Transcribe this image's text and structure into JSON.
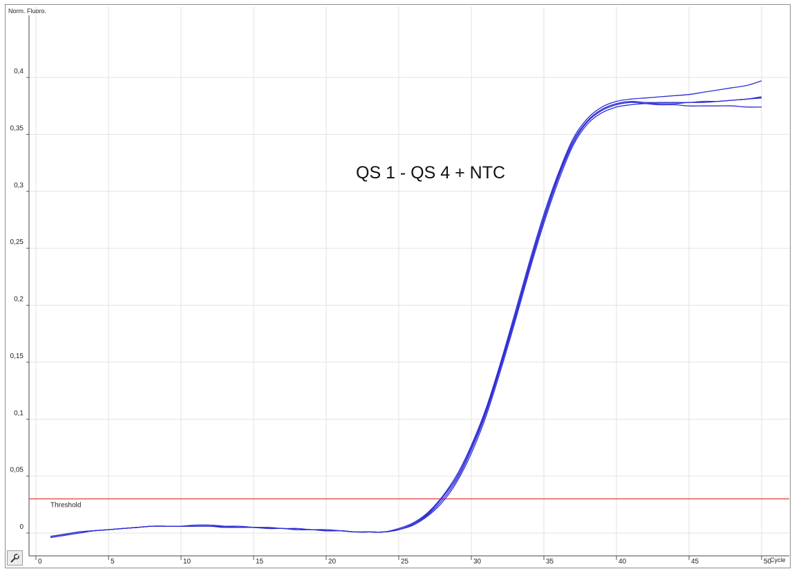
{
  "tool_icon": "wrench-icon",
  "chart_data": {
    "type": "line",
    "title": "",
    "annotation": "QS 1 - QS 4 + NTC",
    "xlabel": "Cycle",
    "ylabel": "Norm. Fluoro.",
    "xlim": [
      0,
      50
    ],
    "ylim": [
      -0.01,
      0.45
    ],
    "grid": true,
    "x_ticks": [
      0,
      5,
      10,
      15,
      20,
      25,
      30,
      35,
      40,
      45,
      50
    ],
    "x_tick_labels": [
      "0",
      "5",
      "10",
      "15",
      "20",
      "25",
      "30",
      "35",
      "40",
      "45",
      "50"
    ],
    "y_ticks": [
      0,
      0.05,
      0.1,
      0.15,
      0.2,
      0.25,
      0.3,
      0.35,
      0.4
    ],
    "y_tick_labels": [
      "0",
      "0,05",
      "0,1",
      "0,15",
      "0,2",
      "0,25",
      "0,3",
      "0,35",
      "0,4"
    ],
    "threshold": {
      "label": "Threshold",
      "value": 0.03,
      "color": "#e8474a"
    },
    "line_color": "#2b2bd6",
    "series_x": [
      1,
      2,
      3,
      4,
      5,
      6,
      7,
      8,
      9,
      10,
      11,
      12,
      13,
      14,
      15,
      16,
      17,
      18,
      19,
      20,
      21,
      22,
      23,
      24,
      25,
      26,
      27,
      28,
      29,
      30,
      31,
      32,
      33,
      34,
      35,
      36,
      37,
      38,
      39,
      40,
      41,
      42,
      43,
      44,
      45,
      46,
      47,
      48,
      49,
      50
    ],
    "series": [
      {
        "values": [
          -0.004,
          -0.002,
          0.0,
          0.002,
          0.003,
          0.004,
          0.005,
          0.006,
          0.006,
          0.006,
          0.006,
          0.006,
          0.005,
          0.005,
          0.005,
          0.004,
          0.004,
          0.003,
          0.003,
          0.002,
          0.002,
          0.001,
          0.001,
          0.001,
          0.003,
          0.008,
          0.016,
          0.029,
          0.047,
          0.073,
          0.105,
          0.145,
          0.188,
          0.233,
          0.275,
          0.312,
          0.342,
          0.361,
          0.371,
          0.376,
          0.378,
          0.377,
          0.376,
          0.376,
          0.375,
          0.375,
          0.375,
          0.375,
          0.374,
          0.374
        ]
      },
      {
        "values": [
          -0.003,
          -0.001,
          0.001,
          0.002,
          0.003,
          0.004,
          0.005,
          0.006,
          0.006,
          0.006,
          0.007,
          0.007,
          0.006,
          0.006,
          0.005,
          0.005,
          0.004,
          0.004,
          0.003,
          0.003,
          0.002,
          0.001,
          0.001,
          0.001,
          0.004,
          0.009,
          0.018,
          0.032,
          0.051,
          0.077,
          0.109,
          0.149,
          0.193,
          0.238,
          0.28,
          0.316,
          0.346,
          0.364,
          0.374,
          0.379,
          0.381,
          0.382,
          0.383,
          0.384,
          0.385,
          0.387,
          0.389,
          0.391,
          0.393,
          0.397
        ]
      },
      {
        "values": [
          -0.003,
          -0.001,
          0.001,
          0.002,
          0.003,
          0.004,
          0.005,
          0.006,
          0.006,
          0.006,
          0.006,
          0.006,
          0.006,
          0.005,
          0.005,
          0.004,
          0.004,
          0.003,
          0.003,
          0.002,
          0.002,
          0.001,
          0.001,
          0.001,
          0.003,
          0.007,
          0.015,
          0.027,
          0.045,
          0.07,
          0.102,
          0.142,
          0.185,
          0.23,
          0.272,
          0.309,
          0.34,
          0.359,
          0.369,
          0.374,
          0.376,
          0.377,
          0.377,
          0.377,
          0.378,
          0.378,
          0.379,
          0.38,
          0.381,
          0.383
        ]
      },
      {
        "values": [
          -0.003,
          -0.001,
          0.001,
          0.002,
          0.003,
          0.004,
          0.005,
          0.006,
          0.006,
          0.006,
          0.006,
          0.006,
          0.005,
          0.005,
          0.005,
          0.004,
          0.004,
          0.003,
          0.003,
          0.002,
          0.002,
          0.001,
          0.001,
          0.001,
          0.003,
          0.008,
          0.017,
          0.031,
          0.049,
          0.075,
          0.107,
          0.147,
          0.19,
          0.235,
          0.277,
          0.314,
          0.344,
          0.362,
          0.372,
          0.377,
          0.379,
          0.378,
          0.378,
          0.378,
          0.378,
          0.379,
          0.379,
          0.38,
          0.381,
          0.382
        ]
      }
    ]
  }
}
